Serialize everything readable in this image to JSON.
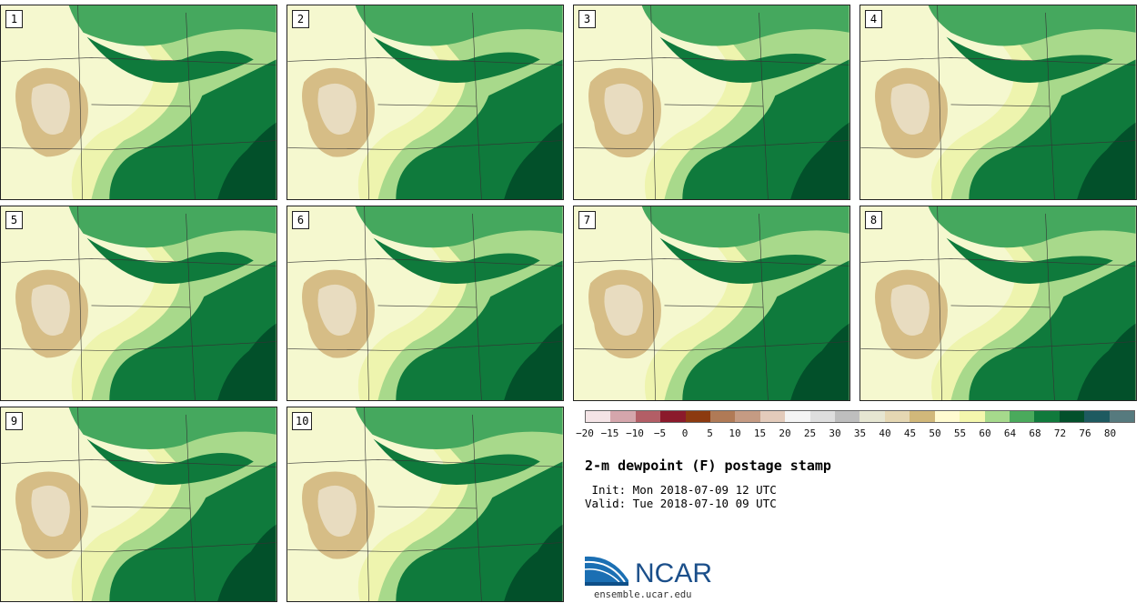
{
  "panels": [
    {
      "label": "1"
    },
    {
      "label": "2"
    },
    {
      "label": "3"
    },
    {
      "label": "4"
    },
    {
      "label": "5"
    },
    {
      "label": "6"
    },
    {
      "label": "7"
    },
    {
      "label": "8"
    },
    {
      "label": "9"
    },
    {
      "label": "10"
    }
  ],
  "colorbar": {
    "colors": [
      "#f4e4e6",
      "#d5a6ac",
      "#b35e66",
      "#8b1a2b",
      "#8c3a10",
      "#b07a56",
      "#c59b83",
      "#e3cbbb",
      "#f4f4f4",
      "#dedede",
      "#bebebe",
      "#e6e6d2",
      "#e5d7b3",
      "#d1b87a",
      "#fffbd0",
      "#f4f7ad",
      "#a6d98c",
      "#4aaa5c",
      "#107a3c",
      "#03502b",
      "#1e5a60",
      "#567a7e"
    ],
    "ticks": [
      "−20",
      "−15",
      "−10",
      "−5",
      "0",
      "5",
      "10",
      "15",
      "20",
      "25",
      "30",
      "35",
      "40",
      "45",
      "50",
      "55",
      "60",
      "64",
      "68",
      "72",
      "76",
      "80"
    ]
  },
  "title": "2-m dewpoint (F) postage stamp",
  "init_line": " Init: Mon 2018-07-09 12 UTC",
  "valid_line": "Valid: Tue 2018-07-10 09 UTC",
  "logo": {
    "text": "NCAR",
    "url": "ensemble.ucar.edu"
  },
  "field_colors": {
    "dry_tan": "#d6bd86",
    "dry_light": "#e8dcc0",
    "pale": "#f5f8cf",
    "light_yellow": "#eef4ae",
    "light_green": "#a8d98b",
    "mid_green": "#45a85e",
    "dark_green": "#0f7a3c",
    "darkest_green": "#02502a"
  }
}
